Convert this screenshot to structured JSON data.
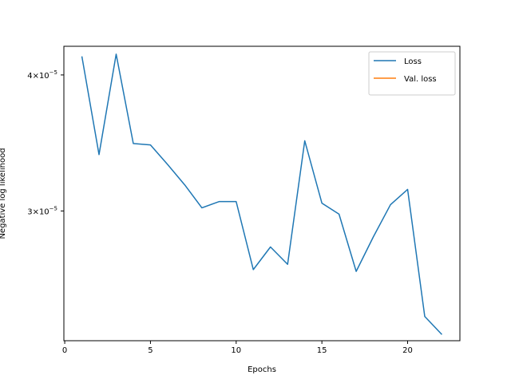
{
  "chart_data": {
    "type": "line",
    "title": "",
    "xlabel": "Epochs",
    "ylabel": "Negative log likelihood",
    "xlim": [
      -0.05,
      23.05
    ],
    "ylim": [
      2.28e-05,
      4.25e-05
    ],
    "yscale": "log",
    "grid": false,
    "legend_position": "top-right",
    "x_ticks": [
      {
        "value": 0,
        "label": "0"
      },
      {
        "value": 5,
        "label": "5"
      },
      {
        "value": 10,
        "label": "10"
      },
      {
        "value": 15,
        "label": "15"
      },
      {
        "value": 20,
        "label": "20"
      }
    ],
    "y_ticks": [
      {
        "value": 3e-05,
        "label_base": "3×10",
        "label_exp": "−5"
      },
      {
        "value": 4e-05,
        "label_base": "4×10",
        "label_exp": "−5"
      }
    ],
    "series": [
      {
        "name": "Loss",
        "color": "#1f77b4",
        "x": [
          1,
          2,
          3,
          4,
          5,
          6,
          7,
          8,
          9,
          10,
          11,
          12,
          13,
          14,
          15,
          16,
          17,
          18,
          19,
          20,
          21,
          22
        ],
        "y": [
          4.16e-05,
          3.38e-05,
          4.18e-05,
          3.46e-05,
          3.45e-05,
          3.31e-05,
          3.17e-05,
          3.02e-05,
          3.06e-05,
          3.06e-05,
          2.65e-05,
          2.78e-05,
          2.68e-05,
          3.48e-05,
          3.05e-05,
          2.98e-05,
          2.64e-05,
          2.84e-05,
          3.04e-05,
          3.14e-05,
          2.4e-05,
          2.31e-05
        ]
      },
      {
        "name": "Val. loss",
        "color": "#ff7f0e",
        "x": [],
        "y": []
      }
    ]
  }
}
